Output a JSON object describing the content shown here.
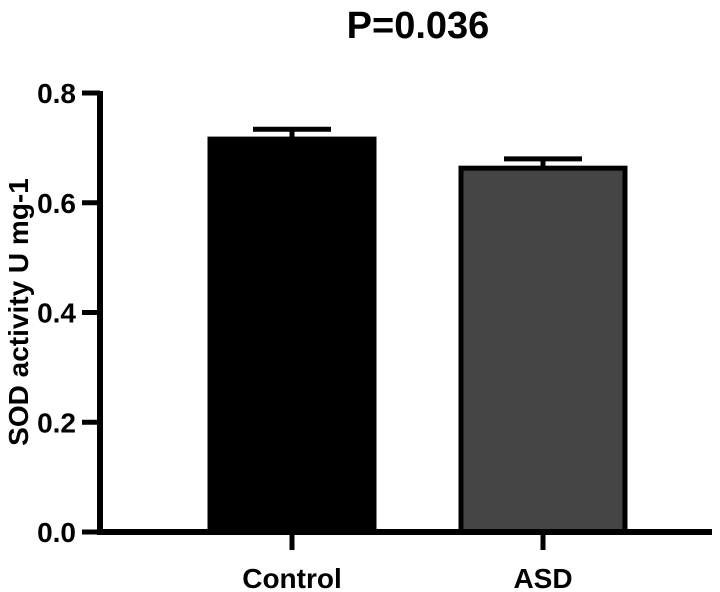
{
  "chart_data": {
    "type": "bar",
    "title": "P=0.036",
    "xlabel": "",
    "ylabel": "SOD activity U mg-1",
    "categories": [
      "Control",
      "ASD"
    ],
    "values": [
      0.716,
      0.663
    ],
    "errors": [
      0.018,
      0.017
    ],
    "bar_colors": [
      "#000000",
      "#454545"
    ],
    "ylim": [
      0.0,
      0.8
    ],
    "yticks": [
      "0.0",
      "0.2",
      "0.4",
      "0.6",
      "0.8"
    ],
    "grid": false
  }
}
